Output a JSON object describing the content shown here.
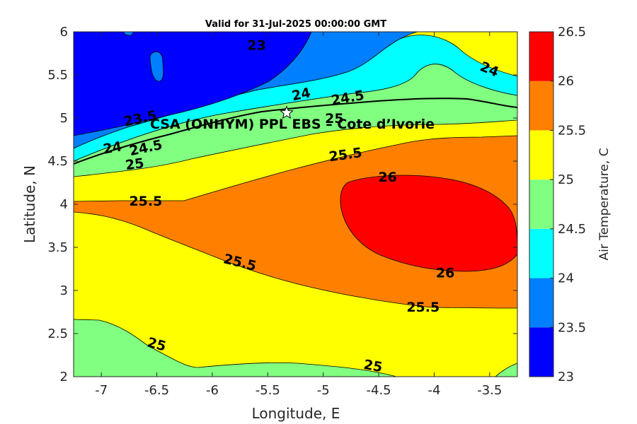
{
  "chart_data": {
    "type": "filled-contour",
    "title": "Valid for 31-Jul-2025 00:00:00 GMT",
    "xlabel": "Longitude, E",
    "ylabel": "Latitude, N",
    "xlim": [
      -7.25,
      -3.25
    ],
    "ylim": [
      2,
      6
    ],
    "x_ticks": [
      -7,
      -6.5,
      -6,
      -5.5,
      -5,
      -4.5,
      -4,
      -3.5
    ],
    "y_ticks": [
      2,
      2.5,
      3,
      3.5,
      4,
      4.5,
      5,
      5.5,
      6
    ],
    "x_tick_labels": [
      "-7",
      "-6.5",
      "-6",
      "-5.5",
      "-5",
      "-4.5",
      "-4",
      "-3.5"
    ],
    "y_tick_labels": [
      "2",
      "2.5",
      "3",
      "3.5",
      "4",
      "4.5",
      "5",
      "5.5",
      "6"
    ],
    "colorbar": {
      "label": "Air Temperature, C",
      "levels": [
        23,
        23.5,
        24,
        24.5,
        25,
        25.5,
        26,
        26.5
      ],
      "level_labels": [
        "23",
        "23.5",
        "24",
        "24.5",
        "25",
        "25.5",
        "26",
        "26.5"
      ],
      "colors": [
        "#0000ff",
        "#0080ff",
        "#00ffff",
        "#80ff80",
        "#ffff00",
        "#ff8000",
        "#ff0000",
        "#800000"
      ]
    },
    "station": {
      "name": "CSA (ONHYM) PPL EBS – Cote d’Ivorie",
      "lon": -5.33,
      "lat": 5.06
    },
    "contour_labels": [
      {
        "text": "23",
        "lon": -5.6,
        "lat": 5.85,
        "angle": 0
      },
      {
        "text": "23.5",
        "lon": -6.65,
        "lat": 5.0,
        "angle": -12
      },
      {
        "text": "24",
        "lon": -6.9,
        "lat": 4.66,
        "angle": -10
      },
      {
        "text": "24",
        "lon": -5.2,
        "lat": 5.28,
        "angle": -12
      },
      {
        "text": "24",
        "lon": -3.5,
        "lat": 5.57,
        "angle": 22
      },
      {
        "text": "24.5",
        "lon": -6.6,
        "lat": 4.66,
        "angle": -12
      },
      {
        "text": "24.5",
        "lon": -4.78,
        "lat": 5.24,
        "angle": -10
      },
      {
        "text": "25",
        "lon": -6.7,
        "lat": 4.47,
        "angle": -8
      },
      {
        "text": "25",
        "lon": -4.9,
        "lat": 5.0,
        "angle": 0
      },
      {
        "text": "25.5",
        "lon": -6.6,
        "lat": 4.04,
        "angle": 0
      },
      {
        "text": "25.5",
        "lon": -4.8,
        "lat": 4.58,
        "angle": -8
      },
      {
        "text": "25.5",
        "lon": -5.75,
        "lat": 3.33,
        "angle": 14
      },
      {
        "text": "25.5",
        "lon": -4.1,
        "lat": 2.81,
        "angle": 0
      },
      {
        "text": "26",
        "lon": -4.42,
        "lat": 4.32,
        "angle": 0
      },
      {
        "text": "26",
        "lon": -3.9,
        "lat": 3.21,
        "angle": 0
      },
      {
        "text": "25",
        "lon": -6.5,
        "lat": 2.38,
        "angle": 15
      },
      {
        "text": "25",
        "lon": -4.55,
        "lat": 2.13,
        "angle": 10
      }
    ]
  }
}
